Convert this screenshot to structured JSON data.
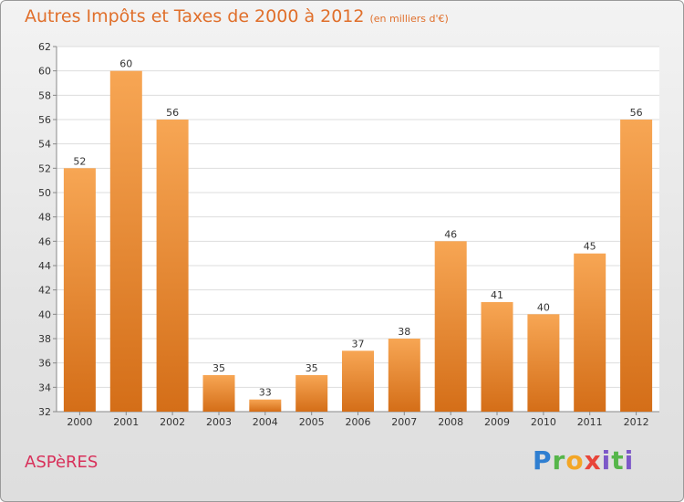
{
  "header": {
    "title": "Autres Impôts et Taxes de 2000 à 2012",
    "subtitle": "(en milliers d'€)"
  },
  "footer": {
    "commune": "ASPèRES",
    "logo": "Proxiti"
  },
  "colors": {
    "bar_top": "#f7a654",
    "bar_bottom": "#d46e18",
    "title": "#e06f2b",
    "commune": "#d8305a"
  },
  "chart_data": {
    "type": "bar",
    "title": "Autres Impôts et Taxes de 2000 à 2012",
    "subtitle": "(en milliers d'€)",
    "categories": [
      "2000",
      "2001",
      "2002",
      "2003",
      "2004",
      "2005",
      "2006",
      "2007",
      "2008",
      "2009",
      "2010",
      "2011",
      "2012"
    ],
    "values": [
      52,
      60,
      56,
      35,
      33,
      35,
      37,
      38,
      46,
      41,
      40,
      45,
      56
    ],
    "ylim": [
      32,
      62
    ],
    "yticks": [
      32,
      34,
      36,
      38,
      40,
      42,
      44,
      46,
      48,
      50,
      52,
      54,
      56,
      58,
      60,
      62
    ],
    "grid": true,
    "legend": "none"
  }
}
